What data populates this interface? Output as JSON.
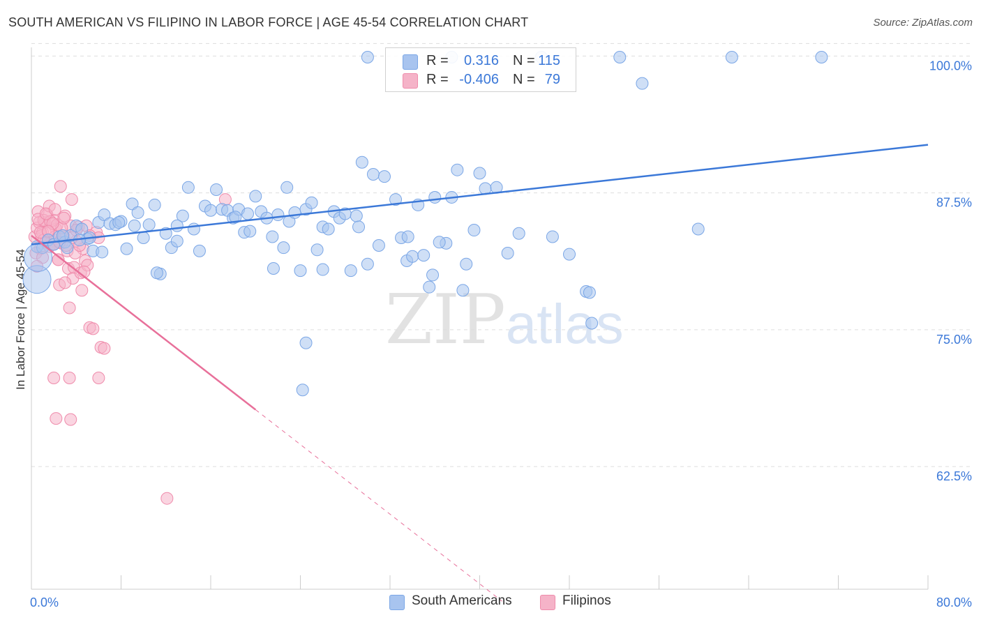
{
  "title": "SOUTH AMERICAN VS FILIPINO IN LABOR FORCE | AGE 45-54 CORRELATION CHART",
  "source": "Source: ZipAtlas.com",
  "watermark": {
    "zip": "ZIP",
    "atlas": "atlas"
  },
  "legend_top": [
    {
      "r_label": "R =",
      "r_value": "0.316",
      "n_label": "N =",
      "n_value": "115",
      "color": "#a8c4ef"
    },
    {
      "r_label": "R =",
      "r_value": "-0.406",
      "n_label": "N =",
      "n_value": "79",
      "color": "#f5b3c8"
    }
  ],
  "legend_bottom": [
    {
      "label": "South Americans",
      "color": "#a8c4ef"
    },
    {
      "label": "Filipinos",
      "color": "#f5b3c8"
    }
  ],
  "chart_data": {
    "type": "scatter",
    "title": "SOUTH AMERICAN VS FILIPINO IN LABOR FORCE | AGE 45-54 CORRELATION CHART",
    "xlabel": "",
    "ylabel": "In Labor Force | Age 45-54",
    "xlim": [
      0,
      80
    ],
    "ylim": [
      51.3,
      101.3
    ],
    "x_tick_labels": [
      "0.0%",
      "80.0%"
    ],
    "y_ticks": [
      62.5,
      75.0,
      87.5,
      100.0
    ],
    "y_tick_labels": [
      "62.5%",
      "75.0%",
      "87.5%",
      "100.0%"
    ],
    "grid": true,
    "legend_placement": "top-center",
    "series": [
      {
        "name": "South Americans",
        "color": "#a8c4ef",
        "edge_color": "#7aa6e6",
        "trend": {
          "x": [
            0,
            80
          ],
          "y": [
            82.8,
            91.9
          ],
          "color": "#3b78d8"
        },
        "points": [
          [
            0.5,
            82.6
          ],
          [
            1.0,
            82.5
          ],
          [
            1.5,
            83.2
          ],
          [
            2.0,
            82.8
          ],
          [
            2.5,
            83.5
          ],
          [
            3.0,
            83.0
          ],
          [
            3.5,
            83.6
          ],
          [
            4.0,
            84.5
          ],
          [
            4.5,
            84.2
          ],
          [
            5.0,
            83.3
          ],
          [
            5.5,
            82.2
          ],
          [
            6.0,
            84.8
          ],
          [
            6.5,
            85.5
          ],
          [
            7.0,
            84.7
          ],
          [
            7.5,
            84.6
          ],
          [
            8.0,
            84.9
          ],
          [
            8.5,
            82.4
          ],
          [
            9.0,
            86.5
          ],
          [
            9.5,
            85.7
          ],
          [
            10.0,
            83.4
          ],
          [
            10.5,
            84.6
          ],
          [
            11.0,
            86.4
          ],
          [
            11.5,
            80.1
          ],
          [
            12.0,
            83.8
          ],
          [
            12.5,
            82.5
          ],
          [
            13.0,
            83.1
          ],
          [
            13.5,
            85.4
          ],
          [
            14.0,
            88.0
          ],
          [
            14.5,
            84.2
          ],
          [
            15.0,
            82.2
          ],
          [
            15.5,
            86.3
          ],
          [
            16.0,
            85.9
          ],
          [
            16.5,
            87.8
          ],
          [
            17.0,
            86.0
          ],
          [
            17.5,
            85.9
          ],
          [
            18.0,
            85.2
          ],
          [
            18.5,
            86.0
          ],
          [
            19.0,
            83.9
          ],
          [
            19.5,
            84.0
          ],
          [
            20.0,
            87.2
          ],
          [
            20.5,
            85.8
          ],
          [
            21.0,
            85.2
          ],
          [
            21.5,
            83.5
          ],
          [
            22.0,
            85.5
          ],
          [
            22.5,
            82.5
          ],
          [
            23.0,
            84.9
          ],
          [
            23.5,
            85.7
          ],
          [
            24.0,
            80.4
          ],
          [
            24.5,
            86.0
          ],
          [
            25.0,
            86.6
          ],
          [
            25.5,
            82.3
          ],
          [
            26.0,
            84.4
          ],
          [
            26.5,
            84.2
          ],
          [
            27.0,
            85.8
          ],
          [
            27.5,
            85.2
          ],
          [
            28.0,
            85.6
          ],
          [
            28.5,
            80.4
          ],
          [
            29.0,
            85.4
          ],
          [
            29.5,
            90.3
          ],
          [
            30.0,
            81.0
          ],
          [
            30.5,
            89.2
          ],
          [
            31.0,
            82.7
          ],
          [
            31.5,
            89.0
          ],
          [
            32.5,
            86.9
          ],
          [
            33.0,
            83.4
          ],
          [
            33.5,
            81.3
          ],
          [
            34.0,
            81.7
          ],
          [
            34.5,
            86.4
          ],
          [
            35.0,
            81.8
          ],
          [
            35.5,
            78.9
          ],
          [
            35.8,
            80.0
          ],
          [
            36.0,
            87.1
          ],
          [
            37.0,
            82.9
          ],
          [
            37.5,
            87.1
          ],
          [
            38.0,
            89.6
          ],
          [
            38.5,
            78.6
          ],
          [
            38.8,
            81.0
          ],
          [
            39.5,
            84.1
          ],
          [
            40.0,
            89.3
          ],
          [
            40.5,
            87.9
          ],
          [
            42.5,
            82.0
          ],
          [
            43.5,
            83.8
          ],
          [
            46.5,
            83.5
          ],
          [
            48.0,
            81.9
          ],
          [
            49.5,
            78.5
          ],
          [
            49.8,
            78.4
          ],
          [
            50.0,
            75.6
          ],
          [
            24.5,
            73.8
          ],
          [
            24.2,
            69.5
          ],
          [
            37.5,
            99.9
          ],
          [
            52.5,
            99.9
          ],
          [
            45.5,
            99.9
          ],
          [
            30.0,
            99.9
          ],
          [
            54.5,
            97.5
          ],
          [
            59.5,
            84.2
          ],
          [
            70.5,
            99.9
          ],
          [
            62.5,
            99.9
          ],
          [
            5.2,
            83.4
          ],
          [
            4.3,
            83.2
          ],
          [
            3.2,
            82.5
          ],
          [
            2.8,
            83.6
          ],
          [
            6.3,
            82.1
          ],
          [
            7.8,
            84.8
          ],
          [
            9.2,
            84.5
          ],
          [
            11.2,
            80.2
          ],
          [
            13.0,
            84.5
          ],
          [
            18.2,
            85.3
          ],
          [
            21.6,
            80.6
          ],
          [
            26.0,
            80.5
          ],
          [
            29.2,
            84.4
          ],
          [
            33.6,
            83.5
          ],
          [
            41.5,
            88.0
          ],
          [
            36.4,
            83.0
          ],
          [
            22.8,
            88.0
          ],
          [
            19.3,
            85.6
          ]
        ]
      },
      {
        "name": "Filipinos",
        "color": "#f5b3c8",
        "edge_color": "#ef8bab",
        "trend": {
          "x": [
            0,
            20
          ],
          "y": [
            83.6,
            67.7
          ],
          "dashed_x": [
            20,
            42
          ],
          "dashed_y": [
            67.7,
            50.2
          ],
          "color": "#e8709a"
        },
        "points": [
          [
            0.3,
            83.5
          ],
          [
            0.5,
            84.3
          ],
          [
            0.6,
            85.8
          ],
          [
            0.8,
            82.4
          ],
          [
            1.0,
            83.9
          ],
          [
            1.2,
            84.8
          ],
          [
            1.4,
            85.5
          ],
          [
            1.6,
            86.3
          ],
          [
            1.8,
            83.1
          ],
          [
            2.0,
            85.0
          ],
          [
            2.2,
            84.2
          ],
          [
            2.4,
            81.4
          ],
          [
            2.5,
            79.1
          ],
          [
            2.6,
            88.1
          ],
          [
            2.8,
            83.4
          ],
          [
            3.0,
            85.4
          ],
          [
            3.2,
            82.2
          ],
          [
            3.3,
            80.6
          ],
          [
            3.4,
            77.0
          ],
          [
            3.5,
            84.5
          ],
          [
            3.6,
            86.9
          ],
          [
            3.7,
            79.7
          ],
          [
            3.8,
            80.7
          ],
          [
            4.0,
            83.1
          ],
          [
            4.2,
            84.4
          ],
          [
            4.4,
            80.2
          ],
          [
            4.5,
            78.6
          ],
          [
            4.6,
            82.4
          ],
          [
            4.8,
            81.3
          ],
          [
            5.0,
            80.9
          ],
          [
            5.2,
            75.2
          ],
          [
            5.5,
            75.1
          ],
          [
            5.8,
            83.9
          ],
          [
            6.2,
            73.4
          ],
          [
            6.5,
            73.3
          ],
          [
            0.4,
            82.0
          ],
          [
            0.7,
            84.8
          ],
          [
            0.9,
            83.6
          ],
          [
            1.1,
            85.0
          ],
          [
            1.3,
            83.0
          ],
          [
            1.5,
            83.9
          ],
          [
            1.7,
            84.9
          ],
          [
            1.9,
            82.8
          ],
          [
            2.1,
            83.5
          ],
          [
            2.3,
            84.6
          ],
          [
            2.7,
            82.9
          ],
          [
            2.9,
            83.5
          ],
          [
            3.1,
            82.7
          ],
          [
            2.0,
            70.6
          ],
          [
            3.4,
            70.6
          ],
          [
            6.0,
            70.6
          ],
          [
            2.2,
            66.9
          ],
          [
            3.5,
            66.8
          ],
          [
            12.1,
            59.6
          ],
          [
            17.3,
            86.9
          ],
          [
            4.9,
            84.5
          ],
          [
            3.9,
            82.0
          ],
          [
            2.4,
            81.4
          ],
          [
            1.6,
            82.6
          ],
          [
            1.0,
            81.6
          ],
          [
            0.5,
            80.8
          ],
          [
            2.0,
            82.8
          ],
          [
            4.3,
            82.7
          ],
          [
            3.6,
            83.4
          ],
          [
            2.7,
            84.3
          ],
          [
            1.9,
            84.7
          ],
          [
            1.1,
            83.2
          ],
          [
            0.8,
            83.9
          ],
          [
            0.6,
            85.1
          ],
          [
            1.3,
            85.6
          ],
          [
            2.1,
            86.0
          ],
          [
            2.9,
            85.2
          ],
          [
            4.0,
            84.1
          ],
          [
            5.2,
            83.6
          ],
          [
            6.0,
            83.4
          ],
          [
            3.0,
            79.3
          ],
          [
            4.7,
            80.3
          ],
          [
            1.5,
            84.0
          ],
          [
            2.5,
            83.0
          ]
        ]
      }
    ],
    "highlight_points": [
      {
        "series": "South Americans",
        "x": 0.5,
        "y": 79.6,
        "size": "large"
      },
      {
        "series": "South Americans",
        "x": 0.6,
        "y": 81.6,
        "size": "large"
      }
    ]
  }
}
